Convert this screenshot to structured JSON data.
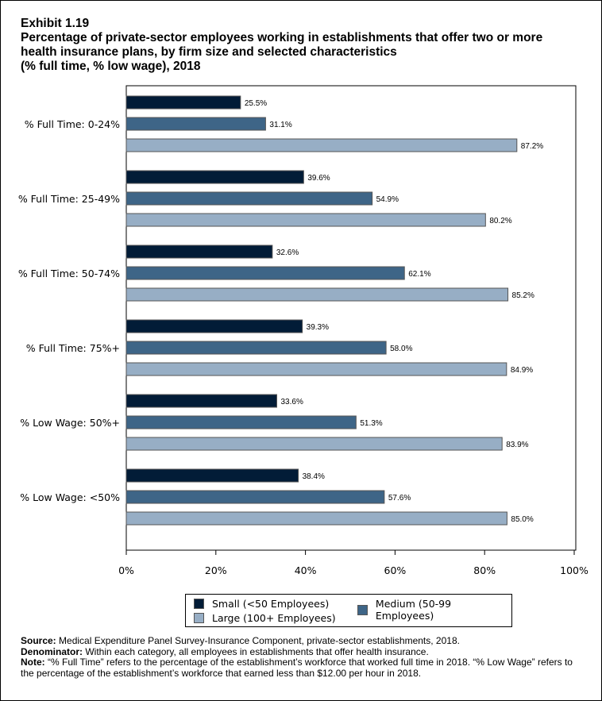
{
  "exhibit": "Exhibit 1.19",
  "title_lines": [
    "Percentage of private-sector employees working in establishments that offer two or more",
    "health insurance plans, by firm size and selected characteristics",
    "(% full time, % low wage), 2018"
  ],
  "chart_data": {
    "type": "bar",
    "orientation": "horizontal",
    "categories": [
      "% Full Time: 0-24%",
      "% Full Time: 25-49%",
      "% Full Time: 50-74%",
      "% Full Time: 75%+",
      "% Low Wage: 50%+",
      "% Low Wage: <50%"
    ],
    "series": [
      {
        "name": "Small (<50 Employees)",
        "color": "#021c37",
        "values": [
          25.5,
          39.6,
          32.6,
          39.3,
          33.6,
          38.4
        ]
      },
      {
        "name": "Medium (50-99 Employees)",
        "color": "#3e6587",
        "values": [
          31.1,
          54.9,
          62.1,
          58.0,
          51.3,
          57.6
        ]
      },
      {
        "name": "Large (100+ Employees)",
        "color": "#97aec5",
        "values": [
          87.2,
          80.2,
          85.2,
          84.9,
          83.9,
          85.0
        ]
      }
    ],
    "xlim": [
      0,
      100
    ],
    "xticks": [
      "0%",
      "20%",
      "40%",
      "60%",
      "80%",
      "100%"
    ],
    "grid": false,
    "legend": "bottom"
  },
  "notes": [
    {
      "label": "Source:",
      "text": " Medical Expenditure Panel Survey-Insurance Component, private-sector establishments, 2018."
    },
    {
      "label": "Denominator:",
      "text": " Within each category, all employees in establishments that offer health insurance."
    },
    {
      "label": "Note:",
      "text": " “% Full Time” refers to the percentage of the establishment’s workforce that worked full time in 2018. “% Low Wage” refers to the percentage of the establishment’s workforce that earned less than $12.00 per hour in 2018."
    }
  ]
}
